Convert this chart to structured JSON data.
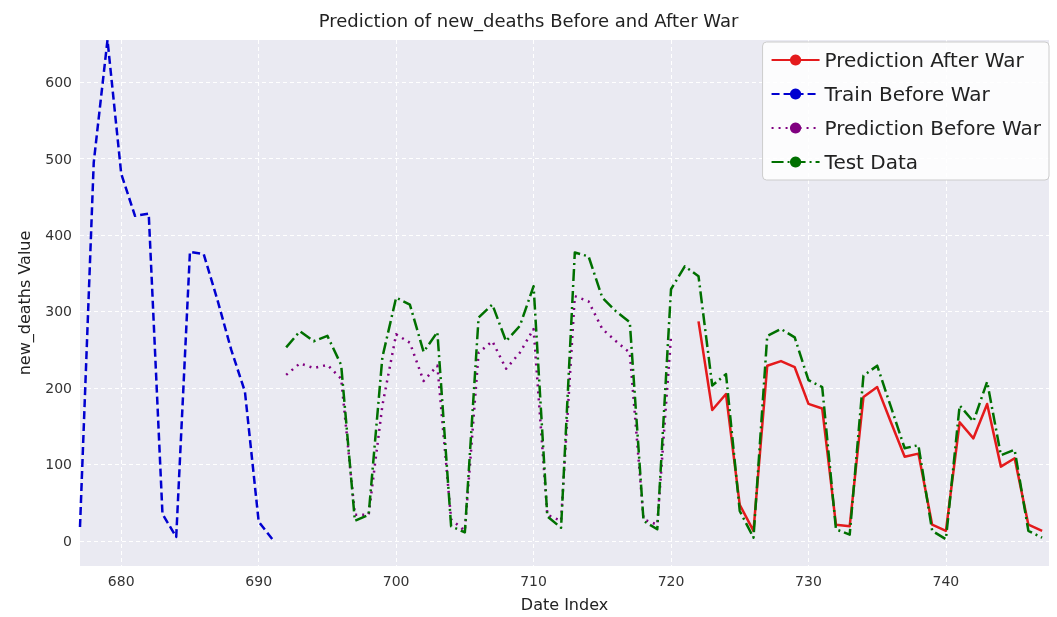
{
  "chart_data": {
    "type": "line",
    "title": "Prediction of new_deaths Before and After War",
    "xlabel": "Date Index",
    "ylabel": "new_deaths Value",
    "xlim": [
      677,
      747.5
    ],
    "xticks": [
      680,
      690,
      700,
      710,
      720,
      730,
      740
    ],
    "ylim": [
      -33,
      655
    ],
    "yticks": [
      0,
      100,
      200,
      300,
      400,
      500,
      600
    ],
    "grid": true,
    "legend": "top right",
    "marker": "none",
    "series": [
      {
        "name": "Prediction After War",
        "color": "#e41a1c",
        "line_style": "solid",
        "x": [
          722,
          723,
          724,
          725,
          726,
          727,
          728,
          729,
          730,
          731,
          732,
          733,
          734,
          735,
          736,
          737,
          738,
          739,
          740,
          741,
          742,
          743,
          744,
          745,
          746,
          747
        ],
        "values": [
          287,
          171,
          192,
          47,
          13,
          229,
          235,
          227,
          179,
          173,
          21,
          19,
          188,
          201,
          155,
          110,
          114,
          21,
          13,
          155,
          134,
          179,
          97,
          108,
          21,
          13
        ]
      },
      {
        "name": "Train Before War",
        "color": "#0000d0",
        "line_style": "dashed",
        "x": [
          677,
          678,
          679,
          680,
          681,
          682,
          683,
          684,
          685,
          686,
          687,
          688,
          689,
          690,
          691
        ],
        "values": [
          18,
          495,
          655,
          480,
          425,
          428,
          35,
          5,
          378,
          375,
          315,
          250,
          195,
          25,
          2
        ]
      },
      {
        "name": "Prediction Before War",
        "color": "#800080",
        "line_style": "dotted",
        "x": [
          692,
          693,
          694,
          695,
          696,
          697,
          698,
          699,
          700,
          701,
          702,
          703,
          704,
          705,
          706,
          707,
          708,
          709,
          710,
          711,
          712,
          713,
          714,
          715,
          716,
          717,
          718,
          719,
          720
        ],
        "values": [
          217,
          232,
          226,
          230,
          212,
          34,
          34,
          177,
          270,
          259,
          209,
          229,
          28,
          13,
          246,
          261,
          225,
          246,
          277,
          34,
          26,
          320,
          313,
          277,
          261,
          246,
          28,
          21,
          268
        ]
      },
      {
        "name": "Test Data",
        "color": "#007000",
        "line_style": "dashdot",
        "x": [
          692,
          693,
          694,
          695,
          696,
          697,
          698,
          699,
          700,
          701,
          702,
          703,
          704,
          705,
          706,
          707,
          708,
          709,
          710,
          711,
          712,
          713,
          714,
          715,
          716,
          717,
          718,
          719,
          720,
          721,
          722,
          723,
          724,
          725,
          726,
          727,
          728,
          729,
          730,
          731,
          732,
          733,
          734,
          735,
          736,
          737,
          738,
          739,
          740,
          741,
          742,
          743,
          744,
          745,
          746,
          747
        ],
        "values": [
          253,
          274,
          261,
          268,
          230,
          26,
          34,
          240,
          318,
          309,
          247,
          273,
          19,
          11,
          292,
          309,
          261,
          281,
          333,
          32,
          17,
          377,
          372,
          318,
          300,
          286,
          26,
          15,
          329,
          359,
          346,
          203,
          218,
          39,
          4,
          268,
          277,
          266,
          210,
          201,
          15,
          8,
          216,
          229,
          175,
          121,
          125,
          13,
          2,
          177,
          156,
          208,
          112,
          119,
          13,
          4
        ]
      }
    ]
  }
}
